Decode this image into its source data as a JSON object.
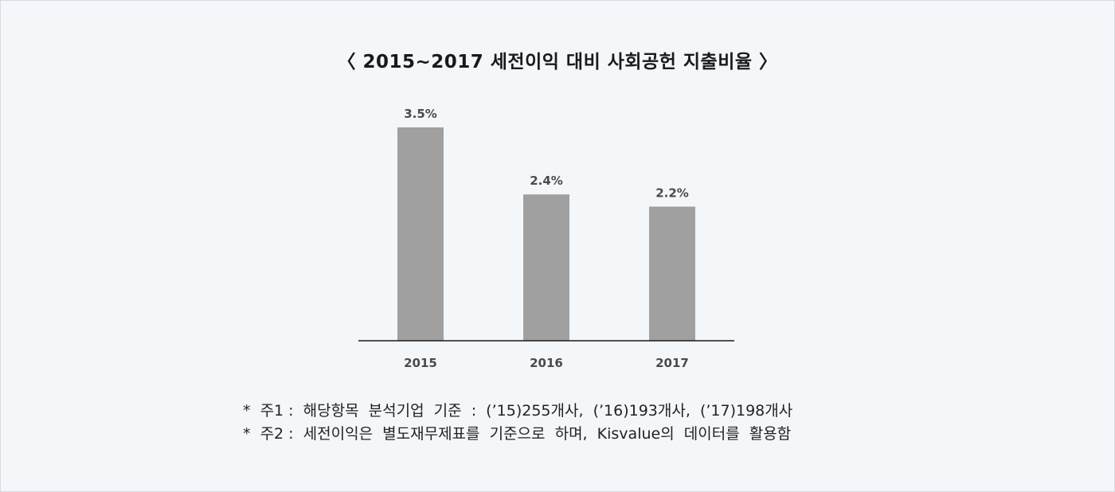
{
  "title": "〈 2015~2017 세전이익 대비 사회공헌 지출비율 〉",
  "chart_data": {
    "type": "bar",
    "title": "〈 2015~2017 세전이익 대비 사회공헌 지출비율 〉",
    "categories": [
      "2015",
      "2016",
      "2017"
    ],
    "values": [
      3.5,
      2.4,
      2.2
    ],
    "value_labels": [
      "3.5%",
      "2.4%",
      "2.2%"
    ],
    "unit": "%",
    "xlabel": "",
    "ylabel": "",
    "ylim": [
      0,
      3.8
    ],
    "grid": false,
    "legend": "none",
    "bar_color": "#a0a0a0",
    "axis_color": "#1a1a1a"
  },
  "notes": [
    "*  주1 :  해당항목  분석기업  기준  :  (’15)255개사,  (’16)193개사,  (’17)198개사",
    "*  주2 :  세전이익은  별도재무제표를  기준으로  하며,  Kisvalue의  데이터를  활용함"
  ]
}
